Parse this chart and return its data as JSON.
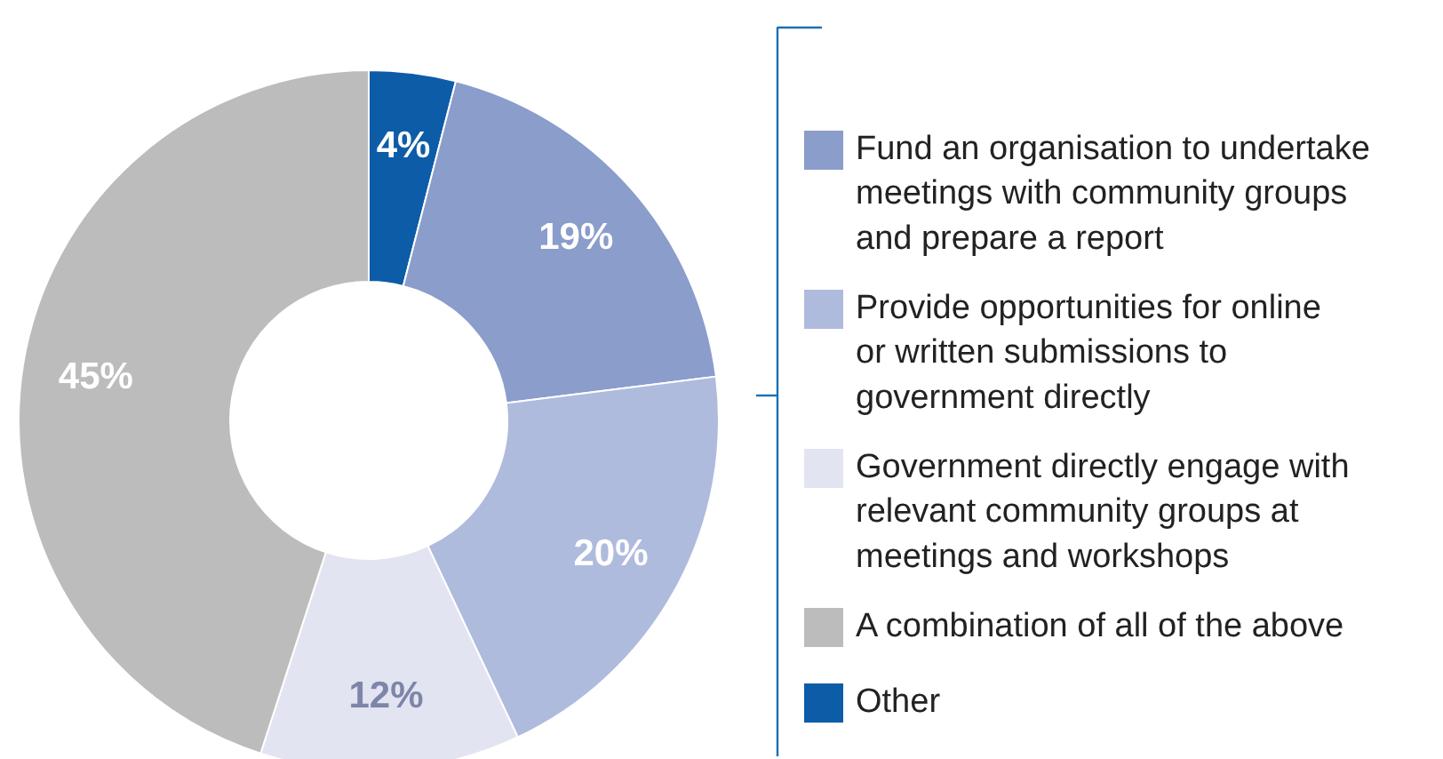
{
  "chart_data": {
    "type": "donut",
    "categories": [
      "Other",
      "Fund an organisation to undertake meetings with community groups and prepare a report",
      "Provide opportunities for online or written submissions to government directly",
      "Government directly engage with relevant community groups at meetings and workshops",
      "A combination of all of the above"
    ],
    "values": [
      4,
      19,
      20,
      12,
      45
    ],
    "colors": [
      "#0d5ca8",
      "#8a9dcb",
      "#afbbdd",
      "#e2e4f1",
      "#bcbcbc"
    ],
    "value_labels": [
      "4%",
      "19%",
      "20%",
      "12%",
      "45%"
    ],
    "legend": "right"
  }
}
